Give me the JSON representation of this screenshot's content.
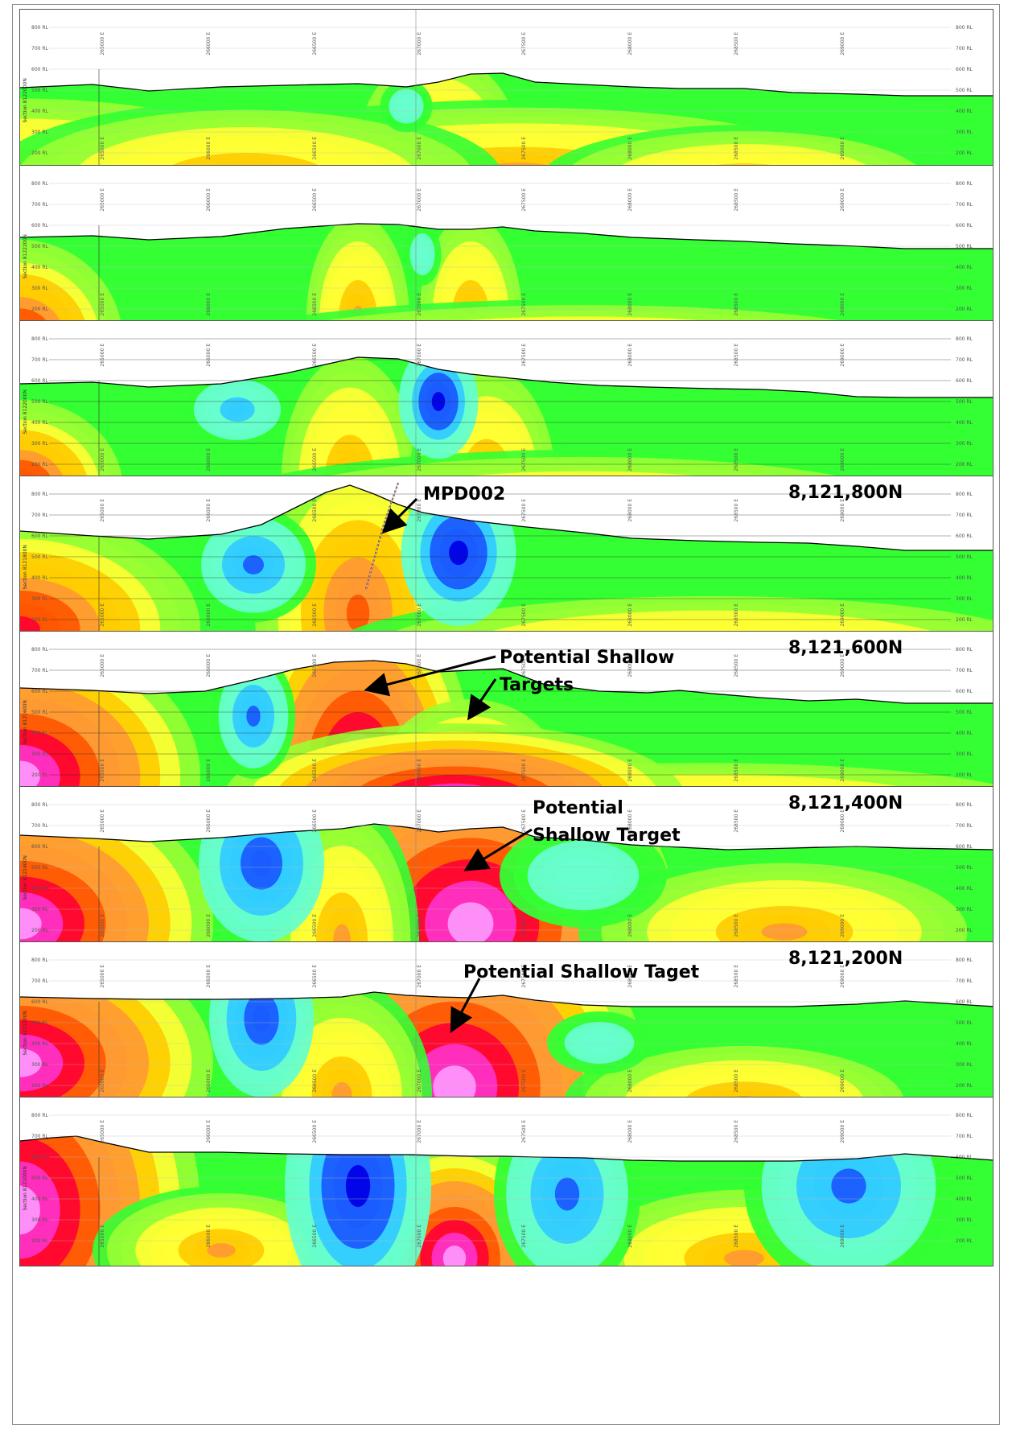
{
  "frame": {
    "background": "#ffffff",
    "border_color": "#8a8a8a"
  },
  "palette": [
    "#0000e6",
    "#1a5cff",
    "#33ccff",
    "#66ffcc",
    "#33ff33",
    "#99ff33",
    "#ffff33",
    "#ffcc00",
    "#ff9933",
    "#ff5500",
    "#ff0033",
    "#ff33cc",
    "#ff99ff"
  ],
  "sections": [
    {
      "side_label": "Section 8122000N",
      "label": ""
    },
    {
      "side_label": "Section 8122200N",
      "label": ""
    },
    {
      "side_label": "Section 8122000N",
      "label": ""
    },
    {
      "side_label": "Section 8121800N",
      "label": "8,121,800N"
    },
    {
      "side_label": "Section 8121600N",
      "label": "8,121,600N"
    },
    {
      "side_label": "Section 8121400N",
      "label": "8,121,400N"
    },
    {
      "side_label": "Section 8121200N",
      "label": "8,121,200N"
    },
    {
      "side_label": "Section 8121000N",
      "label": ""
    }
  ],
  "rl_labels": [
    "800 RL",
    "700 RL",
    "600 RL",
    "500 RL",
    "400 RL",
    "300 RL",
    "200 RL"
  ],
  "easting_labels": [
    "265000 E",
    "266000 E",
    "266500 E",
    "267000 E",
    "267500 E",
    "268000 E",
    "268500 E",
    "269000 E"
  ],
  "annotations": {
    "drillhole": "MPD002",
    "pst_600": [
      "Potential Shallow",
      "Targets"
    ],
    "pst_400": [
      "Potential",
      "Shallow Target"
    ],
    "pst_200": "Potential Shallow Taget"
  },
  "icons": [
    "arrow-icon"
  ]
}
